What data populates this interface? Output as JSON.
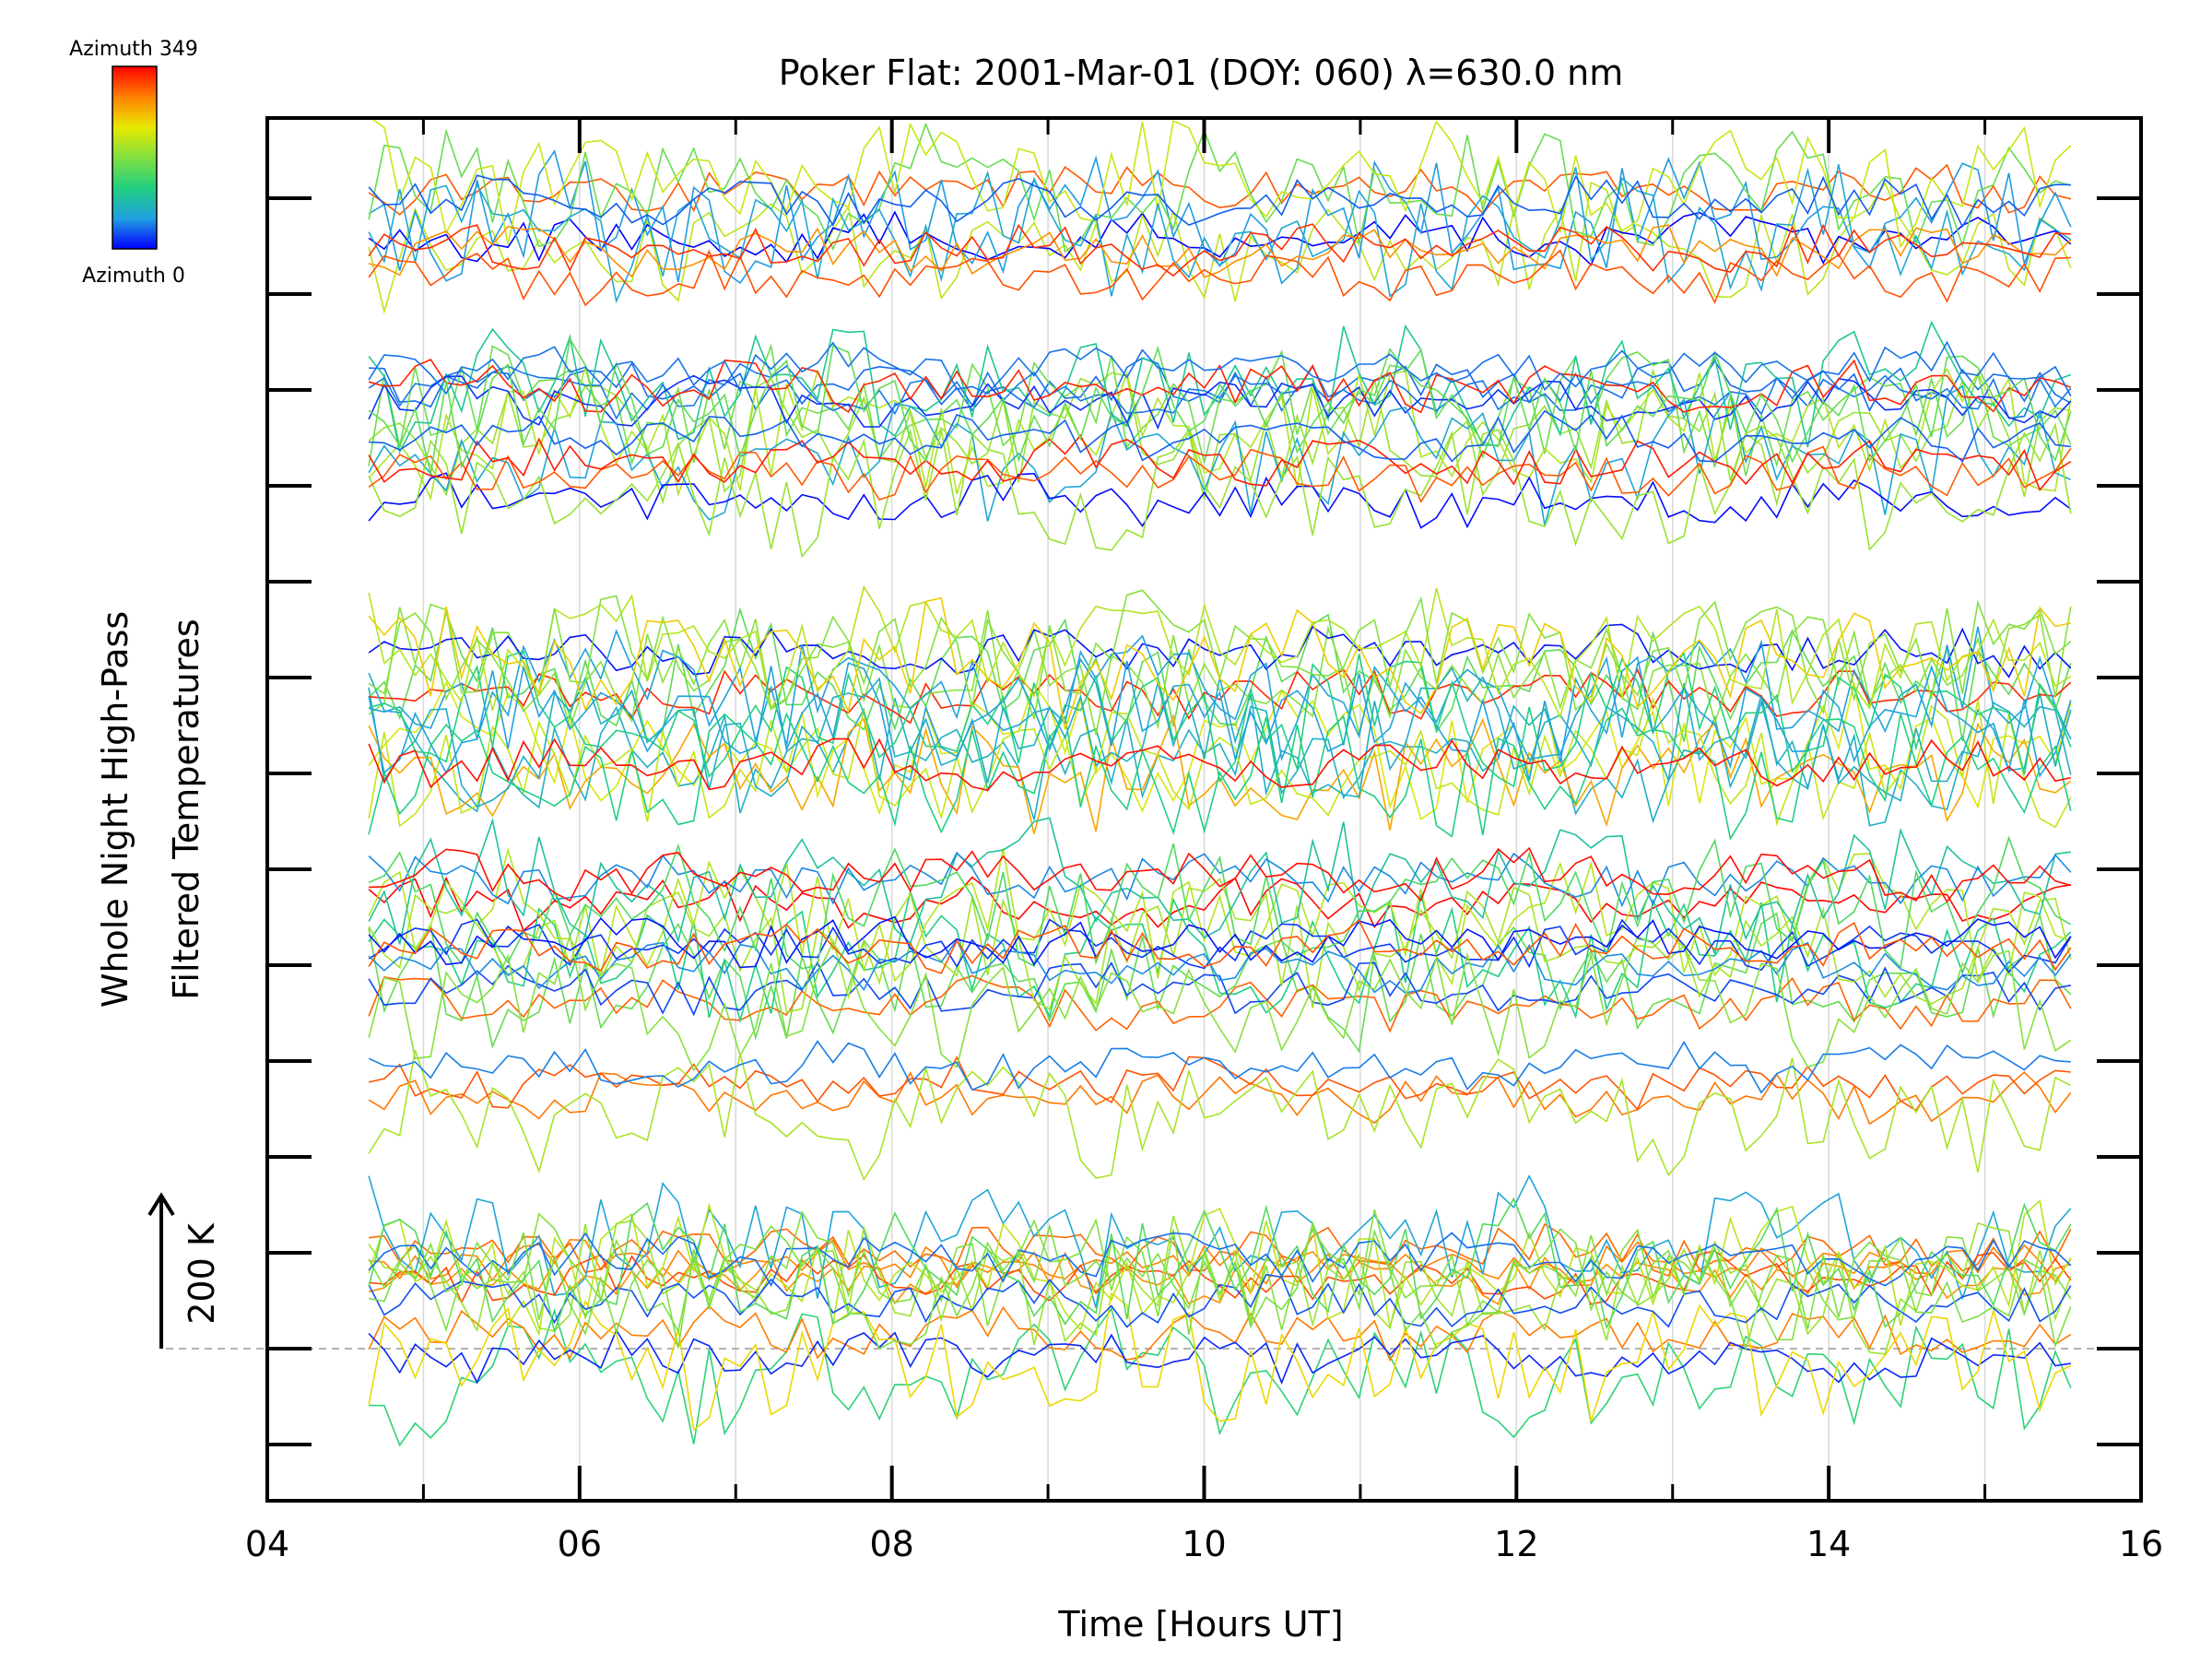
{
  "chart_data": {
    "type": "line",
    "title": "Poker Flat: 2001-Mar-01 (DOY: 060) λ=630.0 nm",
    "xlabel": "Time [Hours UT]",
    "ylabel_line1": "Whole Night High-Pass",
    "ylabel_line2": "Filtered Temperatures",
    "scale_bar_label": "200 K",
    "colorbar_top_label": "Azimuth 349",
    "colorbar_bottom_label": "Azimuth 0",
    "colorbar_colors": [
      "#ff0000",
      "#ff8000",
      "#e8e800",
      "#80e040",
      "#20d080",
      "#20a0e0",
      "#0000ff"
    ],
    "xlim": [
      4,
      16
    ],
    "x_ticks": [
      "04",
      "06",
      "08",
      "10",
      "12",
      "14",
      "16"
    ],
    "x_tick_values": [
      4,
      6,
      8,
      10,
      12,
      14,
      16
    ],
    "time_start": 4.65,
    "time_end": 15.55,
    "grid": "vertical dotted at each hour",
    "n_stacked_traces": 80,
    "colormap": "rainbow by azimuth (blue = 0, red = 349)"
  }
}
